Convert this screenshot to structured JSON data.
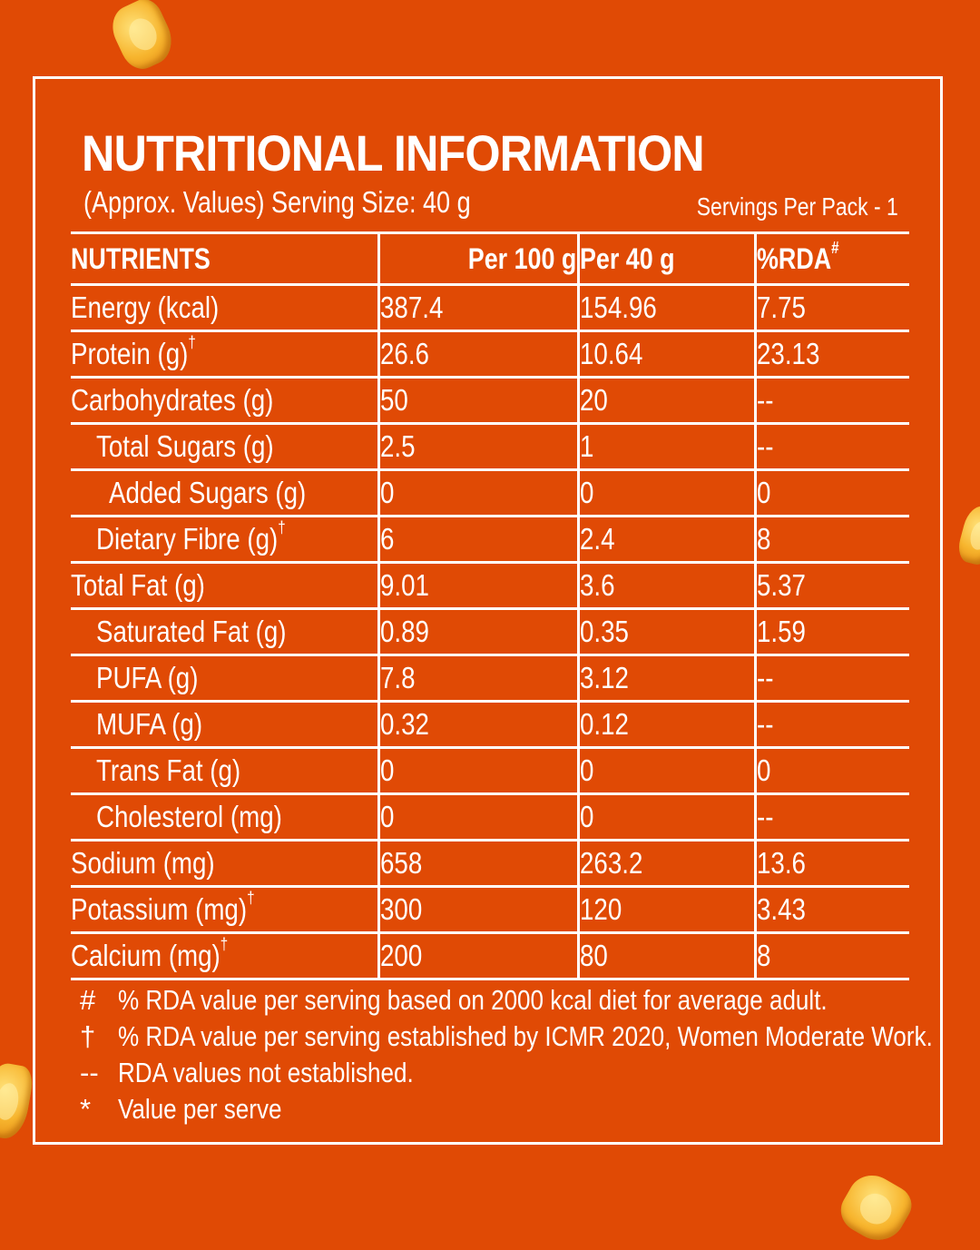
{
  "title": "NUTRITIONAL INFORMATION",
  "subtitle": "(Approx. Values) Serving Size: 40 g",
  "servings": "Servings Per Pack - 1",
  "headers": {
    "nutrients": "NUTRIENTS",
    "per100": "Per 100 g",
    "per40": "Per 40 g",
    "rda": "%RDA",
    "rda_mark": "#"
  },
  "rows": [
    {
      "name": "Energy (kcal)",
      "mark": "",
      "per100": "387.4",
      "per40": "154.96",
      "rda": "7.75"
    },
    {
      "name": "Protein (g)",
      "mark": "†",
      "per100": "26.6",
      "per40": "10.64",
      "rda": "23.13"
    },
    {
      "name": "Carbohydrates (g)",
      "mark": "",
      "per100": "50",
      "per40": "20",
      "rda": "--"
    },
    {
      "name": "Total Sugars (g)",
      "mark": "",
      "per100": "2.5",
      "per40": "1",
      "rda": "--"
    },
    {
      "name": "Added Sugars (g)",
      "mark": "",
      "per100": "0",
      "per40": "0",
      "rda": "0"
    },
    {
      "name": "Dietary Fibre (g)",
      "mark": "†",
      "per100": "6",
      "per40": "2.4",
      "rda": "8"
    },
    {
      "name": "Total Fat (g)",
      "mark": "",
      "per100": "9.01",
      "per40": "3.6",
      "rda": "5.37"
    },
    {
      "name": "Saturated Fat (g)",
      "mark": "",
      "per100": "0.89",
      "per40": "0.35",
      "rda": "1.59"
    },
    {
      "name": "PUFA (g)",
      "mark": "",
      "per100": "7.8",
      "per40": "3.12",
      "rda": "--"
    },
    {
      "name": "MUFA (g)",
      "mark": "",
      "per100": "0.32",
      "per40": "0.12",
      "rda": "--"
    },
    {
      "name": "Trans Fat (g)",
      "mark": "",
      "per100": "0",
      "per40": "0",
      "rda": "0"
    },
    {
      "name": "Cholesterol (mg)",
      "mark": "",
      "per100": "0",
      "per40": "0",
      "rda": "--"
    },
    {
      "name": "Sodium (mg)",
      "mark": "",
      "per100": "658",
      "per40": "263.2",
      "rda": "13.6"
    },
    {
      "name": "Potassium (mg)",
      "mark": "†",
      "per100": "300",
      "per40": "120",
      "rda": "3.43"
    },
    {
      "name": "Calcium (mg)",
      "mark": "†",
      "per100": "200",
      "per40": "80",
      "rda": "8"
    }
  ],
  "notes": [
    {
      "symbol": "#",
      "text": "% RDA value per serving based on 2000 kcal diet for average adult."
    },
    {
      "symbol": "†",
      "text": "% RDA value per serving established by ICMR 2020, Women Moderate Work."
    },
    {
      "symbol": "--",
      "text": "RDA values not established."
    },
    {
      "symbol": "*",
      "text": "Value per serve"
    }
  ],
  "colors": {
    "background": "#E04A05",
    "text": "#FFFFFF",
    "snack": "#F7B52E"
  }
}
